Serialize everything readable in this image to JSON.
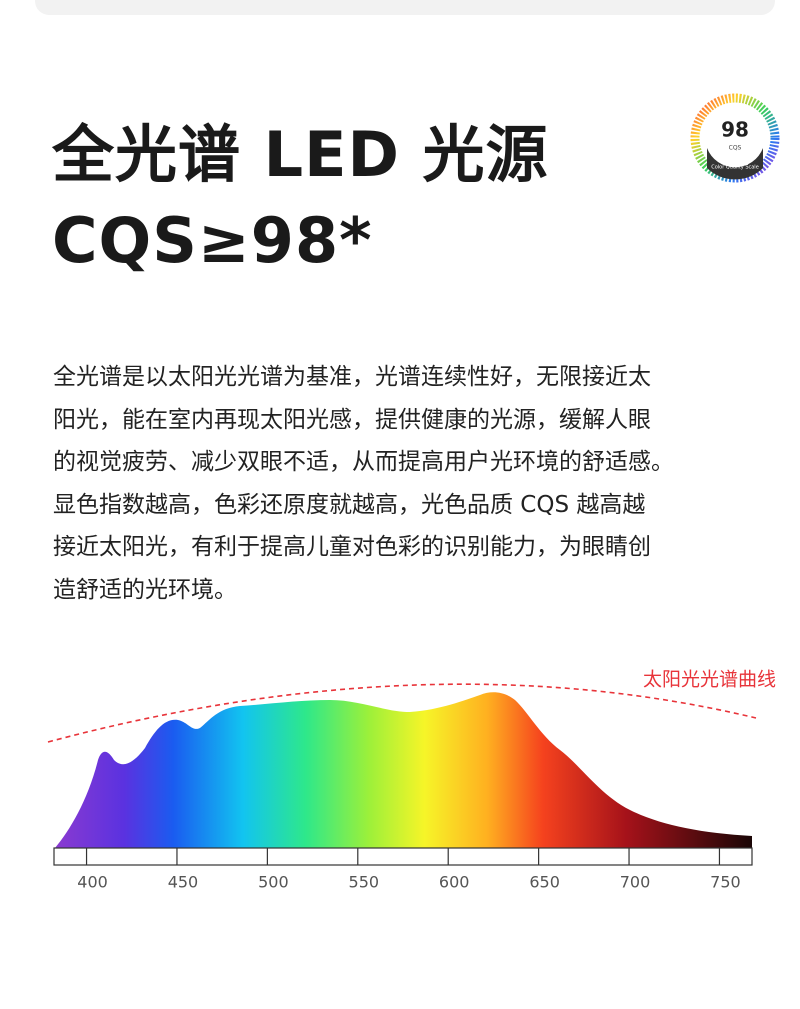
{
  "header": {
    "title_lines": [
      "全光谱 LED 光源",
      "CQS≥98*"
    ],
    "badge": {
      "score": "98",
      "label": "CQS",
      "caption": "Color Quality Scale"
    }
  },
  "paragraph_lines": [
    "全光谱是以太阳光光谱为基准，光谱连续性好，无限接近太",
    "阳光，能在室内再现太阳光感，提供健康的光源，缓解人眼",
    "的视觉疲劳、减少双眼不适，从而提高用户光环境的舒适感。",
    "显色指数越高，色彩还原度就越高，光色品质 CQS  越高越",
    "接近太阳光，有利于提高儿童对色彩的识别能力，为眼睛创",
    "造舒适的光环境。"
  ],
  "chart_data": {
    "type": "spectrum",
    "annotation": "太阳光光谱曲线",
    "xlim": [
      382,
      768
    ],
    "xticks": [
      400,
      450,
      500,
      550,
      600,
      650,
      700,
      750
    ]
  }
}
